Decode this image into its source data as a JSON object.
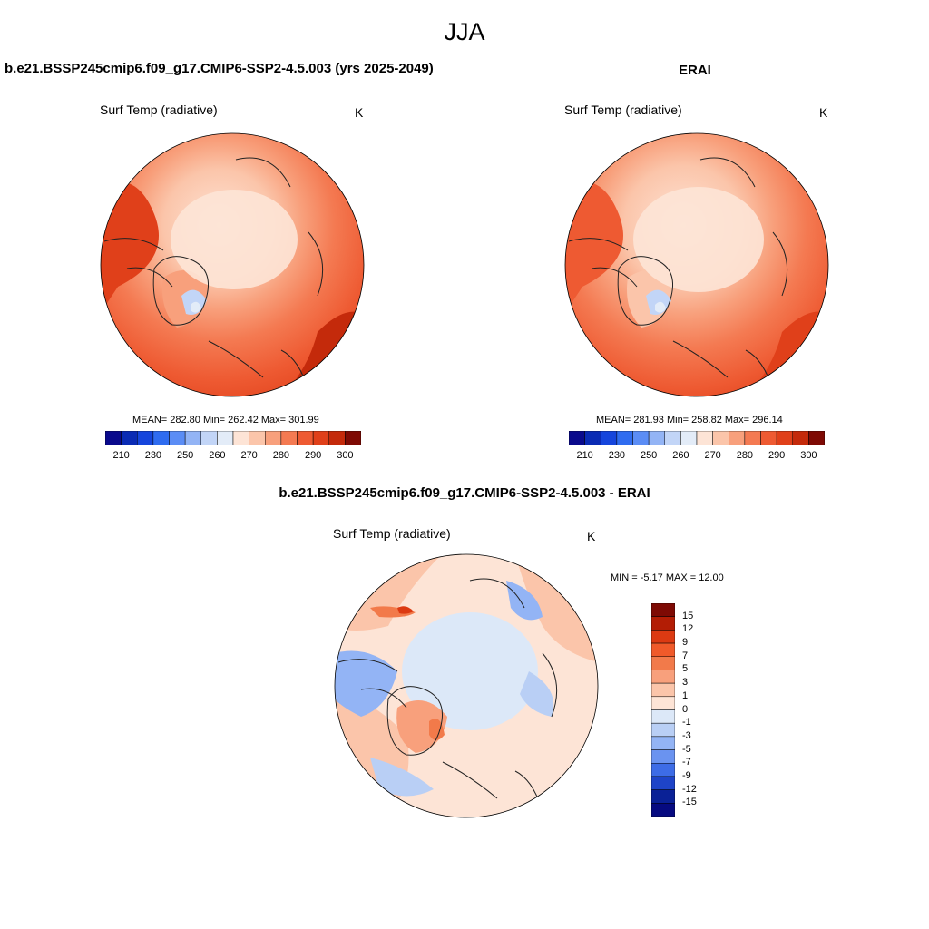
{
  "title": "JJA",
  "panels": [
    {
      "title": "b.e21.BSSP245cmip6.f09_g17.CMIP6-SSP2-4.5.003 (yrs 2025-2049)",
      "variable": "Surf Temp (radiative)",
      "units": "K",
      "stats": "MEAN= 282.80  Min= 262.42  Max= 301.99",
      "colorbar_labels": [
        "210",
        "230",
        "250",
        "260",
        "270",
        "280",
        "290",
        "300"
      ]
    },
    {
      "title": "ERAI",
      "variable": "Surf Temp (radiative)",
      "units": "K",
      "stats": "MEAN= 281.93  Min= 258.82  Max= 296.14",
      "colorbar_labels": [
        "210",
        "230",
        "250",
        "260",
        "270",
        "280",
        "290",
        "300"
      ]
    },
    {
      "title": "b.e21.BSSP245cmip6.f09_g17.CMIP6-SSP2-4.5.003 - ERAI",
      "variable": "Surf Temp (radiative)",
      "units": "K",
      "stats": "MIN =  -5.17 MAX =  12.00",
      "colorbar_labels": [
        "15",
        "12",
        "9",
        "7",
        "5",
        "3",
        "1",
        "0",
        "-1",
        "-3",
        "-5",
        "-7",
        "-9",
        "-12",
        "-15"
      ]
    }
  ],
  "colors": {
    "abs_scale": [
      "#0a0a8c",
      "#0a2bb4",
      "#1545dc",
      "#2f6cf0",
      "#5b8df5",
      "#93b4f5",
      "#c2d5f7",
      "#e3ecf8",
      "#fde4d6",
      "#fbc5aa",
      "#f8a07c",
      "#f47a52",
      "#ee5a32",
      "#e0401a",
      "#c42a0b",
      "#7e0a04"
    ],
    "diff_scale": [
      "#7e0a04",
      "#b31d05",
      "#dc3a12",
      "#f05a2a",
      "#f27a4a",
      "#f8a07c",
      "#fbc5aa",
      "#fde4d6",
      "#dce8f8",
      "#b9cff5",
      "#93b4f5",
      "#6a93f0",
      "#3d6ce6",
      "#1e44c8",
      "#0a2196",
      "#060a80"
    ]
  }
}
